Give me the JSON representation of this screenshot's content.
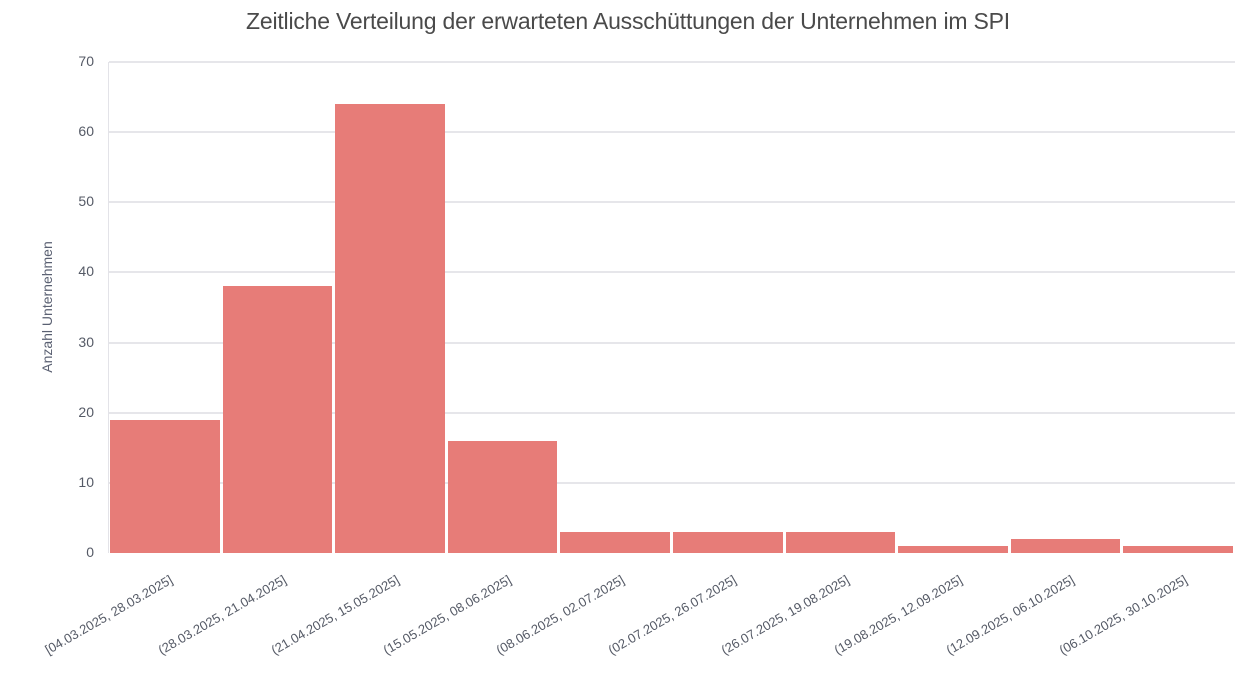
{
  "chart_data": {
    "type": "bar",
    "title": "Zeitliche Verteilung der erwarteten Ausschüttungen der Unternehmen im SPI",
    "xlabel": "",
    "ylabel": "Anzahl Unternehmen",
    "ylim": [
      0,
      70
    ],
    "yticks": [
      "0",
      "10",
      "20",
      "30",
      "40",
      "50",
      "60",
      "70"
    ],
    "grid": true,
    "bar_color": "#e77c78",
    "categories": [
      "[04.03.2025, 28.03.2025]",
      "(28.03.2025, 21.04.2025]",
      "(21.04.2025, 15.05.2025]",
      "(15.05.2025, 08.06.2025]",
      "(08.06.2025, 02.07.2025]",
      "(02.07.2025, 26.07.2025]",
      "(26.07.2025, 19.08.2025]",
      "(19.08.2025, 12.09.2025]",
      "(12.09.2025, 06.10.2025]",
      "(06.10.2025, 30.10.2025]"
    ],
    "values": [
      19,
      38,
      64,
      16,
      3,
      3,
      3,
      1,
      2,
      1
    ]
  }
}
